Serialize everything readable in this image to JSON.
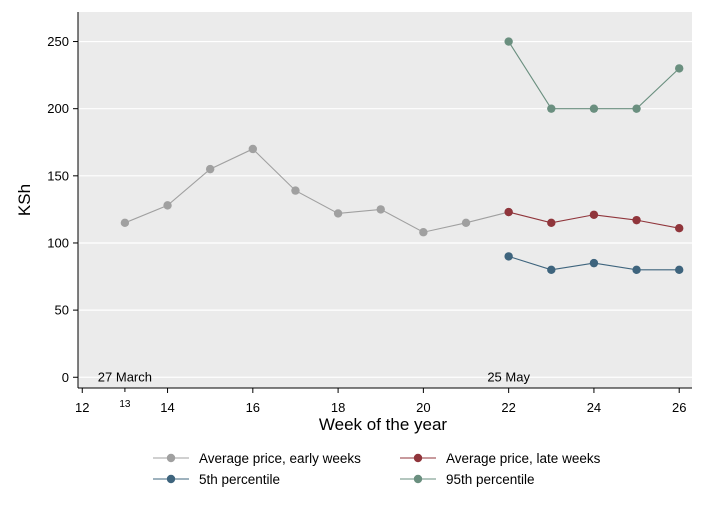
{
  "chart_data": {
    "type": "line",
    "xlabel": "Week of the year",
    "ylabel": "KSh",
    "xlim": [
      11.9,
      26.3
    ],
    "ylim": [
      -8,
      272
    ],
    "x_ticks": [
      12,
      14,
      16,
      18,
      20,
      22,
      24,
      26
    ],
    "y_ticks": [
      0,
      50,
      100,
      150,
      200,
      250
    ],
    "extra_x_tick": {
      "value": 13,
      "label": "13"
    },
    "annotations": [
      {
        "text": "27 March",
        "x": 13,
        "y": 0
      },
      {
        "text": "25 May",
        "x": 22,
        "y": 0
      }
    ],
    "grid": true,
    "legend_position": "bottom",
    "series": [
      {
        "name": "Average price, early weeks",
        "color": "#a0a0a0",
        "x": [
          13,
          14,
          15,
          16,
          17,
          18,
          19,
          20,
          21,
          22
        ],
        "values": [
          115,
          128,
          155,
          170,
          139,
          122,
          125,
          108,
          115,
          123
        ]
      },
      {
        "name": "Average price, late weeks",
        "color": "#90353b",
        "x": [
          22,
          23,
          24,
          25,
          26
        ],
        "values": [
          123,
          115,
          121,
          117,
          111
        ]
      },
      {
        "name": "5th percentile",
        "color": "#3e647d",
        "x": [
          22,
          23,
          24,
          25,
          26
        ],
        "values": [
          90,
          80,
          85,
          80,
          80
        ]
      },
      {
        "name": "95th percentile",
        "color": "#6a8f7f",
        "x": [
          22,
          23,
          24,
          25,
          26
        ],
        "values": [
          250,
          200,
          200,
          200,
          230
        ]
      }
    ]
  }
}
